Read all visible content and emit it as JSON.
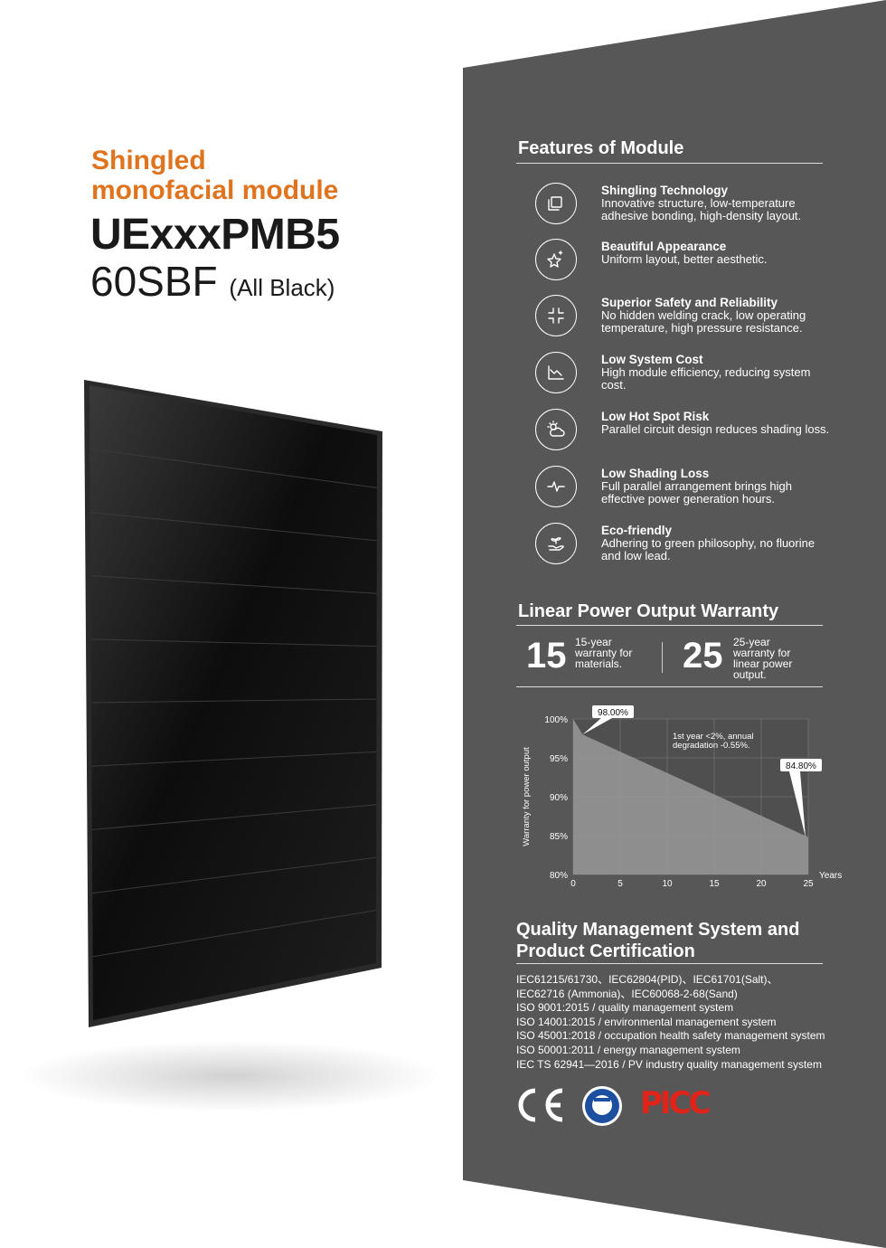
{
  "title": {
    "line1": "Shingled",
    "line2": "monofacial module",
    "model": "UExxxPMB5",
    "variant": "60SBF",
    "variant_note": "(All Black)"
  },
  "colors": {
    "accent": "#e0731e",
    "panel": "#575757",
    "pic_red": "#e2231a"
  },
  "features": {
    "heading": "Features of Module",
    "items": [
      {
        "icon": "layers-icon",
        "title": "Shingling Technology",
        "desc": "Innovative structure, low-temperature adhesive bonding, high-density layout."
      },
      {
        "icon": "sparkle-star-icon",
        "title": "Beautiful Appearance",
        "desc": "Uniform layout, better aesthetic."
      },
      {
        "icon": "compress-icon",
        "title": "Superior Safety and Reliability",
        "desc": "No hidden welding crack, low operating temperature, high pressure resistance."
      },
      {
        "icon": "downtrend-chart-icon",
        "title": "Low System Cost",
        "desc": "High module efficiency, reducing system cost."
      },
      {
        "icon": "sun-cloud-icon",
        "title": "Low Hot Spot Risk",
        "desc": "Parallel circuit design reduces shading loss."
      },
      {
        "icon": "pulse-icon",
        "title": "Low Shading Loss",
        "desc": "Full parallel arrangement brings high effective power generation hours."
      },
      {
        "icon": "plant-hand-icon",
        "title": "Eco-friendly",
        "desc": "Adhering to green philosophy, no fluorine and low lead."
      }
    ]
  },
  "warranty": {
    "heading": "Linear Power Output Warranty",
    "materials_years": "15",
    "materials_text": "15-year warranty for materials.",
    "power_years": "25",
    "power_text": "25-year warranty for linear power output."
  },
  "chart_data": {
    "type": "area",
    "x": [
      0,
      1,
      25
    ],
    "y": [
      100,
      98,
      84.8
    ],
    "xlim": [
      0,
      25
    ],
    "ylim": [
      80,
      100
    ],
    "xticks": [
      "0",
      "5",
      "10",
      "15",
      "20",
      "25"
    ],
    "yticks": [
      "80%",
      "85%",
      "90%",
      "95%",
      "100%"
    ],
    "xlabel": "Years",
    "ylabel": "Warranty for power output",
    "grid": true,
    "annotations": [
      "98.00%",
      "84.80%"
    ],
    "note": "1st year <2%, annual degradation -0.55%."
  },
  "certification": {
    "heading_line1": "Quality Management System and",
    "heading_line2": "Product Certification",
    "lines": [
      "IEC61215/61730、IEC62804(PID)、IEC61701(Salt)、",
      "IEC62716 (Ammonia)、IEC60068-2-68(Sand)",
      "ISO 9001:2015 / quality management system",
      "ISO 14001:2015 / environmental management system",
      "ISO 45001:2018 / occupation health safety management system",
      "ISO 50001:2011 / energy management system",
      "IEC TS 62941—2016 / PV industry quality management system"
    ],
    "logos": {
      "ce": "CE",
      "tuv": "TÜV NORD Type Tested",
      "picc": "PICC"
    }
  }
}
